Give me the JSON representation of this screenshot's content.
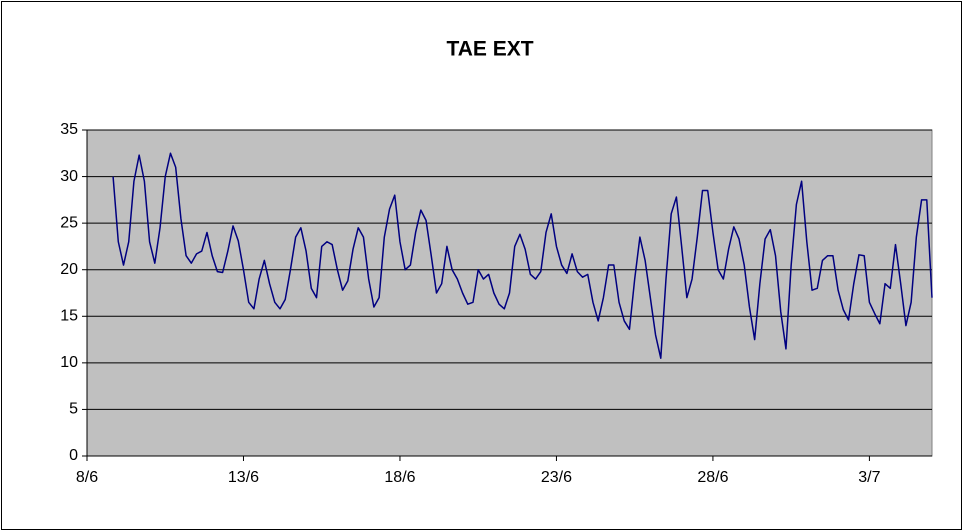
{
  "chart_data": {
    "type": "line",
    "title": "TAE EXT",
    "categories": [
      "8/6",
      null,
      null,
      null,
      null,
      null,
      null,
      null,
      null,
      null,
      null,
      null,
      null,
      null,
      null,
      null,
      null,
      null,
      null,
      null,
      null,
      null,
      null,
      null,
      null,
      null,
      null,
      null,
      null,
      null,
      "13/6",
      null,
      null,
      null,
      null,
      null,
      null,
      null,
      null,
      null,
      null,
      null,
      null,
      null,
      null,
      null,
      null,
      null,
      null,
      null,
      null,
      null,
      null,
      null,
      null,
      null,
      null,
      null,
      null,
      null,
      "18/6",
      null,
      null,
      null,
      null,
      null,
      null,
      null,
      null,
      null,
      null,
      null,
      null,
      null,
      null,
      null,
      null,
      null,
      null,
      null,
      null,
      null,
      null,
      null,
      null,
      null,
      null,
      null,
      null,
      null,
      "23/6",
      null,
      null,
      null,
      null,
      null,
      null,
      null,
      null,
      null,
      null,
      null,
      null,
      null,
      null,
      null,
      null,
      null,
      null,
      null,
      null,
      null,
      null,
      null,
      null,
      null,
      null,
      null,
      null,
      null,
      "28/6",
      null,
      null,
      null,
      null,
      null,
      null,
      null,
      null,
      null,
      null,
      null,
      null,
      null,
      null,
      null,
      null,
      null,
      null,
      null,
      null,
      null,
      null,
      null,
      null,
      null,
      null,
      null,
      null,
      null,
      "3/7",
      null,
      null,
      null,
      null,
      null,
      null,
      null,
      null,
      null,
      null,
      null,
      null
    ],
    "values": [
      null,
      null,
      null,
      null,
      null,
      30,
      23,
      20.5,
      23,
      29.5,
      32.3,
      29.5,
      23,
      20.7,
      24.5,
      30,
      32.5,
      31,
      25.5,
      21.5,
      20.7,
      21.7,
      22,
      24,
      21.5,
      19.8,
      19.7,
      22,
      24.7,
      23.1,
      20,
      16.5,
      15.8,
      19,
      21,
      18.5,
      16.5,
      15.8,
      16.8,
      20,
      23.5,
      24.5,
      22,
      18,
      17,
      22.5,
      23,
      22.7,
      20,
      17.8,
      18.8,
      22.2,
      24.5,
      23.5,
      19,
      16,
      17,
      23.5,
      26.5,
      28,
      23,
      20,
      20.5,
      24,
      26.4,
      25.3,
      21.5,
      17.5,
      18.5,
      22.5,
      20,
      19,
      17.5,
      16.3,
      16.5,
      20,
      19,
      19.5,
      17.5,
      16.3,
      15.8,
      17.5,
      22.5,
      23.8,
      22.2,
      19.5,
      19,
      19.8,
      24,
      26,
      22.5,
      20.5,
      19.6,
      21.7,
      19.8,
      19.2,
      19.5,
      16.5,
      14.5,
      17,
      20.5,
      20.5,
      16.5,
      14.5,
      13.6,
      19,
      23.5,
      21,
      17,
      13,
      10.5,
      19,
      26,
      27.8,
      22.5,
      17,
      19,
      23.5,
      28.5,
      28.5,
      24,
      20,
      19,
      22.2,
      24.6,
      23.3,
      20.5,
      16,
      12.5,
      18.5,
      23.3,
      24.3,
      21.5,
      15.5,
      11.5,
      20.5,
      27,
      29.5,
      23,
      17.8,
      18,
      21,
      21.5,
      21.5,
      17.8,
      15.7,
      14.6,
      18.5,
      21.6,
      21.5,
      16.5,
      15.3,
      14.2,
      18.5,
      18,
      22.7,
      18.5,
      14,
      16.5,
      23.5,
      27.5,
      27.5,
      17
    ],
    "color": "#000080",
    "ylim": [
      0,
      35
    ],
    "yticks": [
      0,
      5,
      10,
      15,
      20,
      25,
      30,
      35
    ],
    "grid": true
  }
}
